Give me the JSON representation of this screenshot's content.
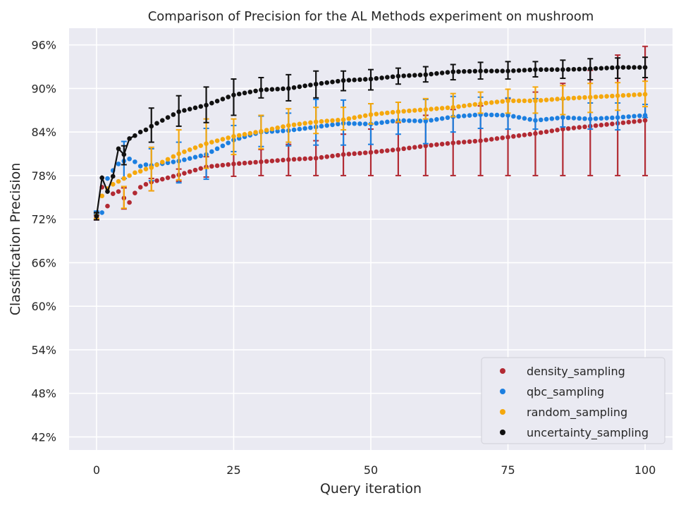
{
  "chart_data": {
    "type": "scatter",
    "title": "Comparison of Precision for the AL Methods experiment on mushroom",
    "xlabel": "Query iteration",
    "ylabel": "Classification Precision",
    "xlim": [
      -5,
      105
    ],
    "ylim": [
      40.2,
      98.3
    ],
    "x_ticks": [
      0,
      25,
      50,
      75,
      100
    ],
    "y_ticks": [
      42,
      48,
      54,
      60,
      66,
      72,
      78,
      84,
      90,
      96
    ],
    "y_tick_format": "percent",
    "grid": true,
    "legend_position": "lower-right",
    "background_color": "#eaeaf2",
    "series": [
      {
        "name": "density_sampling",
        "color": "#b22a33",
        "x": [
          0,
          1,
          2,
          3,
          4,
          5,
          6,
          7,
          8,
          9,
          10,
          15,
          20,
          25,
          30,
          35,
          40,
          45,
          50,
          55,
          60,
          65,
          70,
          75,
          80,
          85,
          90,
          95,
          100
        ],
        "y": [
          72.2,
          76.4,
          73.8,
          75.5,
          75.8,
          74.9,
          74.3,
          75.6,
          76.4,
          76.8,
          77.1,
          78.1,
          79.2,
          79.6,
          79.9,
          80.2,
          80.4,
          80.9,
          81.2,
          81.6,
          82.1,
          82.5,
          82.8,
          83.3,
          83.8,
          84.4,
          84.8,
          85.2,
          85.6
        ],
        "err_x": [
          0,
          5,
          10,
          15,
          20,
          25,
          30,
          35,
          40,
          45,
          50,
          55,
          60,
          65,
          70,
          75,
          80,
          85,
          90,
          95,
          100
        ],
        "err_low": [
          71.9,
          73.4,
          75.9,
          77.2,
          77.8,
          77.9,
          78.0,
          78.0,
          78.0,
          78.0,
          78.0,
          78.0,
          78.0,
          78.0,
          78.0,
          78.0,
          78.0,
          78.0,
          78.0,
          78.0,
          78.0
        ],
        "err_high": [
          72.5,
          76.3,
          77.6,
          78.9,
          80.6,
          81.3,
          81.6,
          82.3,
          82.8,
          83.7,
          84.4,
          85.3,
          86.3,
          87.1,
          87.6,
          88.6,
          89.5,
          90.7,
          92.5,
          94.6,
          95.8
        ]
      },
      {
        "name": "qbc_sampling",
        "color": "#1c7fe0",
        "x": [
          0,
          1,
          2,
          3,
          4,
          5,
          6,
          7,
          8,
          9,
          10,
          15,
          20,
          25,
          30,
          35,
          40,
          45,
          50,
          55,
          60,
          65,
          70,
          75,
          80,
          85,
          90,
          95,
          100
        ],
        "y": [
          72.9,
          72.9,
          77.6,
          78.7,
          79.6,
          80.0,
          80.3,
          79.9,
          79.3,
          79.5,
          79.4,
          80.0,
          80.9,
          82.9,
          84.0,
          84.2,
          84.7,
          85.2,
          85.1,
          85.6,
          85.5,
          86.1,
          86.4,
          86.3,
          85.6,
          86.0,
          85.8,
          86.0,
          86.3
        ],
        "err_x": [
          0,
          5,
          10,
          15,
          20,
          25,
          30,
          35,
          40,
          45,
          50,
          55,
          60,
          65,
          70,
          75,
          80,
          85,
          90,
          95,
          100
        ],
        "err_low": [
          72.7,
          77.6,
          77.3,
          77.0,
          77.5,
          81.3,
          82.0,
          82.1,
          82.2,
          82.2,
          82.3,
          83.7,
          82.4,
          84.0,
          84.5,
          84.4,
          84.4,
          84.7,
          84.4,
          84.3,
          86.0
        ],
        "err_high": [
          73.1,
          82.7,
          81.7,
          82.6,
          84.5,
          84.9,
          86.2,
          86.6,
          88.5,
          88.4,
          87.9,
          88.1,
          88.5,
          88.9,
          88.8,
          88.7,
          88.6,
          88.5,
          88.0,
          88.0,
          87.8
        ]
      },
      {
        "name": "random_sampling",
        "color": "#f5a80d",
        "x": [
          0,
          1,
          2,
          3,
          4,
          5,
          6,
          7,
          8,
          9,
          10,
          15,
          20,
          25,
          30,
          35,
          40,
          45,
          50,
          55,
          60,
          65,
          70,
          75,
          80,
          85,
          90,
          95,
          100
        ],
        "y": [
          72.5,
          75.2,
          76.2,
          76.8,
          77.2,
          77.6,
          78.0,
          78.4,
          78.6,
          78.9,
          79.1,
          81.0,
          82.4,
          83.4,
          84.1,
          84.9,
          85.4,
          85.7,
          86.4,
          86.8,
          87.1,
          87.4,
          87.9,
          88.3,
          88.3,
          88.6,
          88.8,
          89.0,
          89.2
        ],
        "err_x": [
          0,
          5,
          10,
          15,
          20,
          25,
          30,
          35,
          40,
          45,
          50,
          55,
          60,
          65,
          70,
          75,
          80,
          85,
          90,
          95,
          100
        ],
        "err_low": [
          72.1,
          73.5,
          75.9,
          77.4,
          79.0,
          80.9,
          81.7,
          82.6,
          83.8,
          84.3,
          85.1,
          85.4,
          85.8,
          86.1,
          86.6,
          86.6,
          86.6,
          86.4,
          86.7,
          87.0,
          87.5
        ],
        "err_high": [
          72.9,
          76.5,
          81.9,
          84.3,
          85.8,
          85.8,
          86.3,
          87.2,
          87.4,
          87.4,
          87.9,
          88.1,
          88.6,
          89.3,
          89.5,
          89.9,
          90.2,
          90.4,
          90.7,
          90.8,
          91.0
        ]
      },
      {
        "name": "uncertainty_sampling",
        "color": "#111111",
        "x": [
          0,
          1,
          2,
          3,
          4,
          5,
          6,
          7,
          8,
          9,
          10,
          15,
          20,
          25,
          30,
          35,
          40,
          45,
          50,
          55,
          60,
          65,
          70,
          75,
          80,
          85,
          90,
          95,
          100
        ],
        "y": [
          72.4,
          77.7,
          75.8,
          77.9,
          81.7,
          80.9,
          83.1,
          83.5,
          84.0,
          84.3,
          84.8,
          86.8,
          87.7,
          89.1,
          89.8,
          90.0,
          90.6,
          91.1,
          91.3,
          91.7,
          91.9,
          92.3,
          92.4,
          92.4,
          92.6,
          92.6,
          92.7,
          92.9,
          92.9
        ],
        "err_x": [
          0,
          5,
          10,
          15,
          20,
          25,
          30,
          35,
          40,
          45,
          50,
          55,
          60,
          65,
          70,
          75,
          80,
          85,
          90,
          95,
          100
        ],
        "err_low": [
          71.9,
          79.5,
          82.6,
          84.8,
          85.3,
          86.3,
          88.7,
          88.3,
          88.7,
          89.7,
          89.8,
          90.6,
          90.9,
          91.2,
          91.3,
          91.3,
          91.6,
          91.4,
          91.2,
          91.4,
          91.5
        ],
        "err_high": [
          72.9,
          82.1,
          87.3,
          89.0,
          90.2,
          91.3,
          91.5,
          91.9,
          92.4,
          92.4,
          92.6,
          92.8,
          93.0,
          93.3,
          93.6,
          93.7,
          93.7,
          93.9,
          94.1,
          94.2,
          94.3
        ]
      }
    ]
  }
}
